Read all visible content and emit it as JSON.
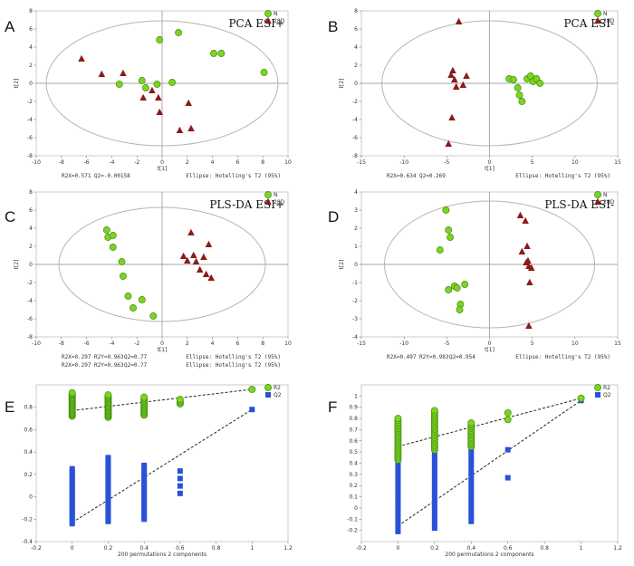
{
  "colors": {
    "green": "#7ed321",
    "green_stroke": "#3f8f0e",
    "red": "#8b1a1a",
    "blue": "#2a52d6",
    "axis": "#888888",
    "ellipse": "#b5b5b5"
  },
  "chart_data": [
    {
      "panel": "A",
      "type": "scatter",
      "title": "PCA ESI+",
      "xlabel": "t[1]",
      "ylabel": "t[2]",
      "xlim": [
        -10,
        10
      ],
      "ylim": [
        -8,
        8
      ],
      "xticks": [
        -10,
        -8,
        -6,
        -4,
        -2,
        0,
        2,
        4,
        6,
        8,
        10
      ],
      "yticks": [
        -8,
        -6,
        -4,
        -2,
        0,
        2,
        4,
        6,
        8
      ],
      "ellipse": {
        "rx": 9.2,
        "ry": 6.9,
        "label": "Ellipse: Hotelling's T2 (95%)"
      },
      "legend": [
        "N",
        "28D"
      ],
      "footer_stats": [
        [
          "R2X=0.571",
          "Q2=-0.00158"
        ]
      ],
      "series": [
        {
          "name": "N",
          "marker": "circle",
          "points": [
            [
              -3.4,
              -0.1
            ],
            [
              -1.6,
              0.3
            ],
            [
              -1.3,
              -0.5
            ],
            [
              -0.4,
              -0.1
            ],
            [
              -0.2,
              4.8
            ],
            [
              0.8,
              0.1
            ],
            [
              1.3,
              5.6
            ],
            [
              4.1,
              3.3
            ],
            [
              4.7,
              3.3
            ],
            [
              8.1,
              1.2
            ]
          ]
        },
        {
          "name": "28D",
          "marker": "triangle",
          "points": [
            [
              -6.4,
              2.7
            ],
            [
              -4.8,
              1.0
            ],
            [
              -3.1,
              1.1
            ],
            [
              -1.5,
              -1.6
            ],
            [
              -0.8,
              -0.8
            ],
            [
              -0.3,
              -1.6
            ],
            [
              -0.2,
              -3.2
            ],
            [
              1.4,
              -5.2
            ],
            [
              2.1,
              -2.2
            ],
            [
              2.3,
              -5.0
            ]
          ]
        }
      ]
    },
    {
      "panel": "B",
      "type": "scatter",
      "title": "PCA ESI-",
      "xlabel": "t[1]",
      "ylabel": "t[2]",
      "xlim": [
        -15,
        15
      ],
      "ylim": [
        -8,
        8
      ],
      "xticks": [
        -15,
        -10,
        -5,
        0,
        5,
        10,
        15
      ],
      "yticks": [
        -8,
        -6,
        -4,
        -2,
        0,
        2,
        4,
        6,
        8
      ],
      "ellipse": {
        "rx": 12.6,
        "ry": 6.9,
        "label": "Ellipse: Hotelling's T2 (95%)"
      },
      "legend": [
        "N",
        "28D"
      ],
      "footer_stats": [
        [
          "R2X=0.634",
          "Q2=0.269"
        ]
      ],
      "series": [
        {
          "name": "N",
          "marker": "circle",
          "points": [
            [
              2.3,
              0.5
            ],
            [
              2.8,
              0.4
            ],
            [
              3.3,
              -0.5
            ],
            [
              3.5,
              -1.3
            ],
            [
              3.8,
              -2.0
            ],
            [
              4.4,
              0.5
            ],
            [
              4.8,
              0.8
            ],
            [
              5.1,
              0.2
            ],
            [
              5.5,
              0.5
            ],
            [
              5.9,
              0.0
            ]
          ]
        },
        {
          "name": "28D",
          "marker": "triangle",
          "points": [
            [
              -4.8,
              -6.7
            ],
            [
              -4.4,
              -3.8
            ],
            [
              -4.3,
              1.4
            ],
            [
              -4.1,
              0.4
            ],
            [
              -3.9,
              -0.4
            ],
            [
              -3.6,
              6.8
            ],
            [
              -3.1,
              -0.2
            ],
            [
              -2.7,
              0.8
            ],
            [
              -4.5,
              0.9
            ]
          ]
        }
      ]
    },
    {
      "panel": "C",
      "type": "scatter",
      "title": "PLS-DA ESI+",
      "xlabel": "t[1]",
      "ylabel": "t[2]",
      "xlim": [
        -10,
        10
      ],
      "ylim": [
        -8,
        8
      ],
      "xticks": [
        -10,
        -8,
        -6,
        -4,
        -2,
        0,
        2,
        4,
        6,
        8,
        10
      ],
      "yticks": [
        -8,
        -6,
        -4,
        -2,
        0,
        2,
        4,
        6,
        8
      ],
      "ellipse": {
        "rx": 8.2,
        "ry": 6.3,
        "label": "Ellipse: Hotelling's T2 (95%)"
      },
      "legend": [
        "N",
        "28D"
      ],
      "footer_stats": [
        [
          "R2X=0.297",
          "R2Y=0.963",
          "Q2=0.77"
        ],
        [
          "R2X=0.297",
          "R2Y=0.963",
          "Q2=0.77"
        ]
      ],
      "series": [
        {
          "name": "N",
          "marker": "circle",
          "points": [
            [
              -4.4,
              3.8
            ],
            [
              -4.3,
              3.0
            ],
            [
              -3.9,
              3.2
            ],
            [
              -3.9,
              1.9
            ],
            [
              -3.2,
              0.3
            ],
            [
              -3.1,
              -1.3
            ],
            [
              -2.7,
              -3.5
            ],
            [
              -2.3,
              -4.8
            ],
            [
              -1.6,
              -3.9
            ],
            [
              -0.7,
              -5.7
            ]
          ]
        },
        {
          "name": "28D",
          "marker": "triangle",
          "points": [
            [
              1.7,
              0.9
            ],
            [
              2.0,
              0.4
            ],
            [
              2.3,
              3.5
            ],
            [
              2.5,
              1.0
            ],
            [
              2.7,
              0.3
            ],
            [
              3.0,
              -0.6
            ],
            [
              3.3,
              0.8
            ],
            [
              3.5,
              -1.1
            ],
            [
              3.7,
              2.2
            ],
            [
              3.9,
              -1.5
            ]
          ]
        }
      ]
    },
    {
      "panel": "D",
      "type": "scatter",
      "title": "PLS-DA ESI-",
      "xlabel": "t[1]",
      "ylabel": "t[2]",
      "xlim": [
        -15,
        15
      ],
      "ylim": [
        -4,
        4
      ],
      "xticks": [
        -15,
        -10,
        -5,
        0,
        5,
        10,
        15
      ],
      "yticks": [
        -4,
        -3,
        -2,
        -1,
        0,
        1,
        2,
        3,
        4
      ],
      "ellipse": {
        "rx": 12.3,
        "ry": 3.5,
        "label": "Ellipse: Hotelling's T2 (95%)"
      },
      "legend": [
        "N",
        "28D"
      ],
      "footer_stats": [
        [
          "R2X=0.497",
          "R2Y=0.983",
          "Q2=0.954"
        ]
      ],
      "series": [
        {
          "name": "N",
          "marker": "circle",
          "points": [
            [
              -5.8,
              0.8
            ],
            [
              -5.1,
              3.0
            ],
            [
              -4.8,
              1.9
            ],
            [
              -4.6,
              1.5
            ],
            [
              -4.8,
              -1.4
            ],
            [
              -4.1,
              -1.2
            ],
            [
              -3.8,
              -1.3
            ],
            [
              -3.4,
              -2.2
            ],
            [
              -3.5,
              -2.5
            ],
            [
              -2.9,
              -1.1
            ]
          ]
        },
        {
          "name": "28D",
          "marker": "triangle",
          "points": [
            [
              3.6,
              2.7
            ],
            [
              3.8,
              0.7
            ],
            [
              4.2,
              2.4
            ],
            [
              4.3,
              0.1
            ],
            [
              4.4,
              1.0
            ],
            [
              4.5,
              0.2
            ],
            [
              4.6,
              -0.1
            ],
            [
              4.7,
              -1.0
            ],
            [
              4.9,
              -0.2
            ],
            [
              4.6,
              -3.4
            ]
          ]
        }
      ]
    },
    {
      "panel": "E",
      "type": "scatter",
      "title": "",
      "xlabel": "200 permutations 2 components",
      "ylabel": "",
      "xlim": [
        -0.2,
        1.2
      ],
      "ylim": [
        -0.4,
        1.0
      ],
      "xticks": [
        -0.2,
        0,
        0.2,
        0.4,
        0.6,
        0.8,
        1,
        1.2
      ],
      "yticks": [
        -0.4,
        -0.2,
        0,
        0.2,
        0.4,
        0.6,
        0.8
      ],
      "legend": [
        "R2",
        "Q2"
      ],
      "series": [
        {
          "name": "R2",
          "marker": "circle",
          "x_groups": [
            0,
            0.2,
            0.4,
            0.6,
            1
          ],
          "y_ranges": [
            [
              0.72,
              0.93
            ],
            [
              0.71,
              0.91
            ],
            [
              0.73,
              0.89
            ],
            [
              0.83,
              0.87
            ],
            [
              0.96,
              0.96
            ]
          ],
          "points_per_group": [
            22,
            20,
            14,
            4,
            1
          ]
        },
        {
          "name": "Q2",
          "marker": "square",
          "x_groups": [
            0,
            0.2,
            0.4,
            0.6,
            1
          ],
          "y_ranges": [
            [
              -0.24,
              0.25
            ],
            [
              -0.22,
              0.35
            ],
            [
              -0.2,
              0.28
            ],
            [
              0.03,
              0.23
            ],
            [
              0.78,
              0.78
            ]
          ],
          "points_per_group": [
            26,
            24,
            20,
            4,
            1
          ]
        }
      ],
      "regression_lines": [
        {
          "name": "R2",
          "x": [
            0,
            1
          ],
          "y": [
            0.77,
            0.96
          ]
        },
        {
          "name": "Q2",
          "x": [
            0,
            1
          ],
          "y": [
            -0.23,
            0.78
          ]
        }
      ]
    },
    {
      "panel": "F",
      "type": "scatter",
      "title": "",
      "xlabel": "200 permutations 2 components",
      "ylabel": "",
      "xlim": [
        -0.2,
        1.2
      ],
      "ylim": [
        -0.3,
        1.1
      ],
      "xticks": [
        -0.2,
        0,
        0.2,
        0.4,
        0.6,
        0.8,
        1,
        1.2
      ],
      "yticks": [
        -0.2,
        -0.1,
        0,
        0.1,
        0.2,
        0.3,
        0.4,
        0.5,
        0.6,
        0.7,
        0.8,
        0.9,
        1
      ],
      "legend": [
        "R2",
        "Q2"
      ],
      "series": [
        {
          "name": "R2",
          "marker": "circle",
          "x_groups": [
            0,
            0.2,
            0.4,
            0.6,
            1
          ],
          "y_ranges": [
            [
              0.43,
              0.8
            ],
            [
              0.52,
              0.87
            ],
            [
              0.55,
              0.76
            ],
            [
              0.79,
              0.85
            ],
            [
              0.98,
              0.98
            ]
          ],
          "points_per_group": [
            22,
            20,
            14,
            2,
            1
          ]
        },
        {
          "name": "Q2",
          "marker": "square",
          "x_groups": [
            0,
            0.2,
            0.4,
            0.6,
            1
          ],
          "y_ranges": [
            [
              -0.21,
              0.61
            ],
            [
              -0.18,
              0.67
            ],
            [
              -0.12,
              0.63
            ],
            [
              0.27,
              0.52
            ],
            [
              0.96,
              0.96
            ]
          ],
          "points_per_group": [
            26,
            24,
            20,
            2,
            1
          ]
        }
      ],
      "regression_lines": [
        {
          "name": "R2",
          "x": [
            0,
            1
          ],
          "y": [
            0.55,
            0.98
          ]
        },
        {
          "name": "Q2",
          "x": [
            0,
            1
          ],
          "y": [
            -0.16,
            0.96
          ]
        }
      ]
    }
  ]
}
